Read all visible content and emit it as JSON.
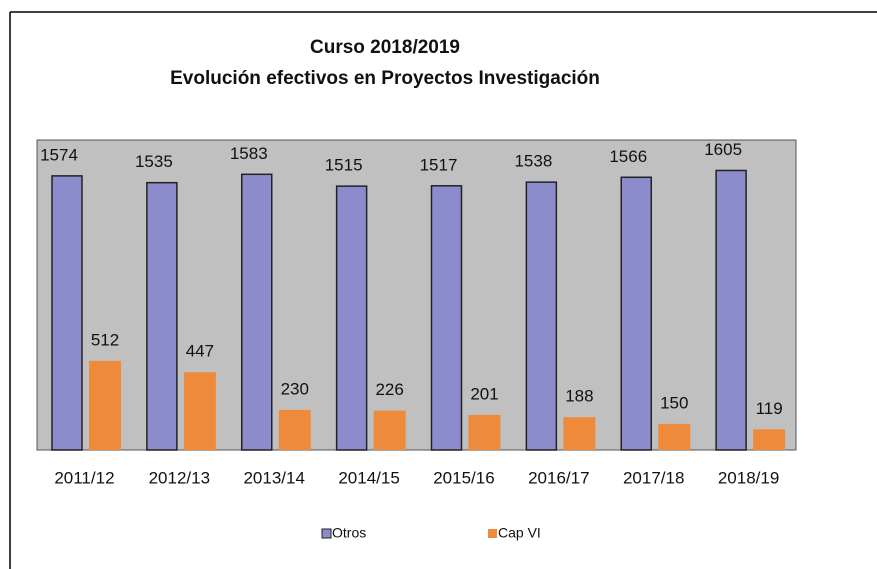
{
  "chart_data": {
    "type": "bar",
    "title": "Curso 2018/2019",
    "subtitle": "Evolución efectivos en Proyectos Investigación",
    "categories": [
      "2011/12",
      "2012/13",
      "2013/14",
      "2014/15",
      "2015/16",
      "2016/17",
      "2017/18",
      "2018/19"
    ],
    "series": [
      {
        "name": "Otros",
        "color": "#8c8ccc",
        "values": [
          1574,
          1535,
          1583,
          1515,
          1517,
          1538,
          1566,
          1605
        ]
      },
      {
        "name": "Cap VI",
        "color": "#ee8a3c",
        "values": [
          512,
          447,
          230,
          226,
          201,
          188,
          150,
          119
        ]
      }
    ],
    "ylim": [
      0,
      1780
    ],
    "legend": "bottom"
  }
}
